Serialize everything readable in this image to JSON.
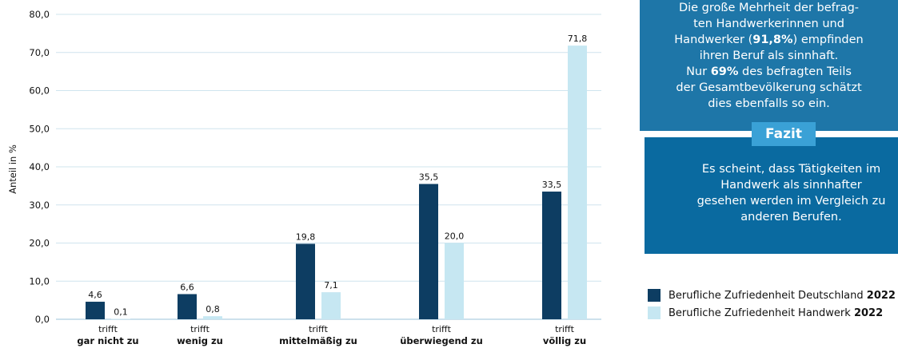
{
  "chart_data": {
    "type": "bar",
    "ylabel": "Anteil in %",
    "ylim": [
      0,
      80
    ],
    "yticks": [
      "0,0",
      "10,0",
      "20,0",
      "30,0",
      "40,0",
      "50,0",
      "60,0",
      "70,0",
      "80,0"
    ],
    "categories": [
      {
        "top": "trifft",
        "bottom": "gar nicht zu"
      },
      {
        "top": "trifft",
        "bottom": "wenig zu"
      },
      {
        "top": "trifft",
        "bottom": "mittelmäßig zu"
      },
      {
        "top": "trifft",
        "bottom": "überwiegend zu"
      },
      {
        "top": "trifft",
        "bottom": "völlig zu"
      }
    ],
    "series": [
      {
        "name": "Berufliche Zufriedenheit Deutschland 2022",
        "color": "#0d3d62",
        "values": [
          4.6,
          6.6,
          19.8,
          35.5,
          33.5
        ],
        "labels": [
          "4,6",
          "6,6",
          "19,8",
          "35,5",
          "33,5"
        ]
      },
      {
        "name": "Berufliche Zufriedenheit Handwerk 2022",
        "color": "#c6e7f2",
        "values": [
          0.1,
          0.8,
          7.1,
          20.0,
          71.8
        ],
        "labels": [
          "0,1",
          "0,8",
          "7,1",
          "20,0",
          "71,8"
        ]
      }
    ],
    "grid": true,
    "legend_position": "right"
  },
  "info_box": {
    "line1": "Die große Mehrheit der befrag-",
    "line2": "ten Handwerkerinnen und",
    "line3_pre": "Handwerker (",
    "line3_bold": "91,8%",
    "line3_post": ") empfinden",
    "line4": "ihren Beruf als sinnhaft.",
    "line5_pre": "Nur ",
    "line5_bold": "69%",
    "line5_post": " des befragten Teils",
    "line6": "der Gesamtbevölkerung schätzt",
    "line7": "dies ebenfalls so ein."
  },
  "conclusion": {
    "badge": "Fazit",
    "line1": "Es scheint, dass Tätigkeiten im",
    "line2": "Handwerk als sinnhafter",
    "line3": "gesehen werden im Vergleich zu",
    "line4": "anderen Berufen."
  },
  "legend": [
    {
      "text": "Berufliche Zufriedenheit Deutschland",
      "year": "2022",
      "color": "#0d3d62"
    },
    {
      "text": "Berufliche Zufriedenheit Handwerk",
      "year": "2022",
      "color": "#c6e7f2"
    }
  ]
}
